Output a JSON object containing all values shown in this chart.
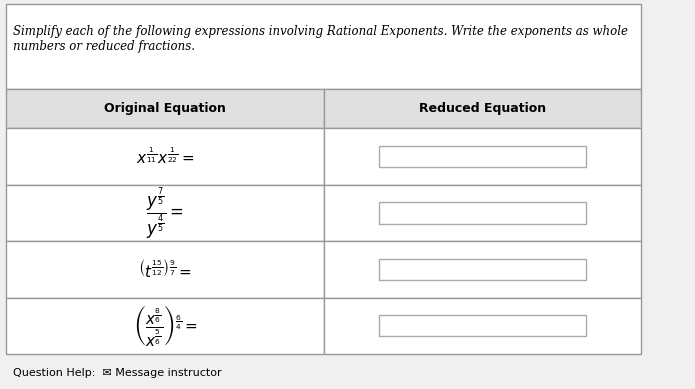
{
  "title_text": "Simplify each of the following expressions involving Rational Exponents. Write the exponents as whole\nnumbers or reduced fractions.",
  "col1_header": "Original Equation",
  "col2_header": "Reduced Equation",
  "background_color": "#f0f0f0",
  "table_bg": "#e8e8e8",
  "cell_bg": "#f5f5f5",
  "border_color": "#999999",
  "header_bg": "#e0e0e0",
  "answer_box_color": "#ffffff",
  "answer_box_border": "#aaaaaa",
  "equations": [
    "$x^{\\frac{1}{11}} x^{\\frac{1}{22}} =$",
    "$\\dfrac{y^{\\frac{7}{5}}}{y^{\\frac{4}{5}}} =$",
    "$\\left(t^{\\frac{15}{12}}\\right)^{\\frac{9}{7}} =$",
    "$\\left(\\dfrac{x^{\\frac{8}{6}}}{x^{\\frac{5}{6}}}\\right)^{\\frac{6}{4}} =$"
  ],
  "footer_text": "Question Help:",
  "footer_icon": "✉",
  "footer_link": "Message instructor",
  "figsize": [
    6.95,
    3.89
  ],
  "dpi": 100
}
